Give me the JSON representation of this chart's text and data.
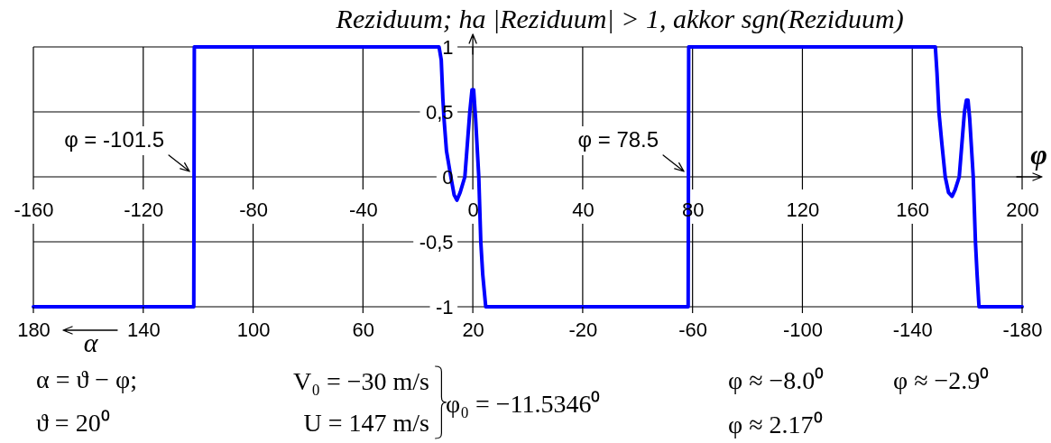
{
  "chart_data": {
    "type": "line",
    "xlabel": "φ",
    "x2label": "α",
    "ylabel": "Reziduum; ha |Reziduum| > 1, akkor sgn(Reziduum)",
    "xlim": [
      -160,
      200
    ],
    "xticks": [
      -160,
      -120,
      -80,
      -40,
      0,
      40,
      80,
      120,
      160,
      200
    ],
    "x2lim": [
      180,
      -180
    ],
    "x2ticks": [
      180,
      140,
      100,
      60,
      20,
      -20,
      -60,
      -100,
      -140,
      -180
    ],
    "ylim": [
      -1,
      1
    ],
    "yticks": [
      -1,
      {
        "value": -0.5,
        "label": "-0,5"
      },
      0,
      {
        "value": 0.5,
        "label": "0,5"
      },
      1
    ],
    "grid": true,
    "series": [
      {
        "color": "#0000ff",
        "x": [
          -160,
          -101.6,
          -101.4,
          -12.3,
          -11.5,
          -10.9,
          -10.5,
          -9.6,
          -8.0,
          -6.8,
          -5.8,
          -4.6,
          -2.9,
          -1.1,
          -0.3,
          0.3,
          1.0,
          2.17,
          2.9,
          3.6,
          4.7,
          78.4,
          78.6,
          168.4,
          169.0,
          169.7,
          170.8,
          172.0,
          173.2,
          174.5,
          175.6,
          177.1,
          179.0,
          179.7,
          180.3,
          180.9,
          182.2,
          183.0,
          183.6,
          184.3,
          200
        ],
        "values": [
          -1,
          -1,
          1,
          1,
          0.9,
          0.6,
          0.45,
          0.2,
          0,
          -0.14,
          -0.18,
          -0.12,
          0,
          0.5,
          0.67,
          0.67,
          0.45,
          0,
          -0.5,
          -0.75,
          -1,
          -1,
          1,
          1,
          0.8,
          0.5,
          0.25,
          0,
          -0.12,
          -0.15,
          -0.1,
          0,
          0.5,
          0.59,
          0.59,
          0.45,
          0,
          -0.5,
          -0.75,
          -1,
          -1
        ]
      }
    ],
    "annotations": [
      {
        "text": "φ = -101.5",
        "x": -101.5,
        "y": 0
      },
      {
        "text": "φ = 78.5",
        "x": 78.5,
        "y": 0
      },
      "α = ϑ − φ;",
      "ϑ = 20⁰",
      "V₀ = −30 m/s",
      "U = 147 m/s",
      "φ₀ = −11.5346⁰",
      "φ ≈ −8.0⁰",
      "φ ≈ −2.9⁰",
      "φ ≈ 2.17⁰"
    ]
  }
}
